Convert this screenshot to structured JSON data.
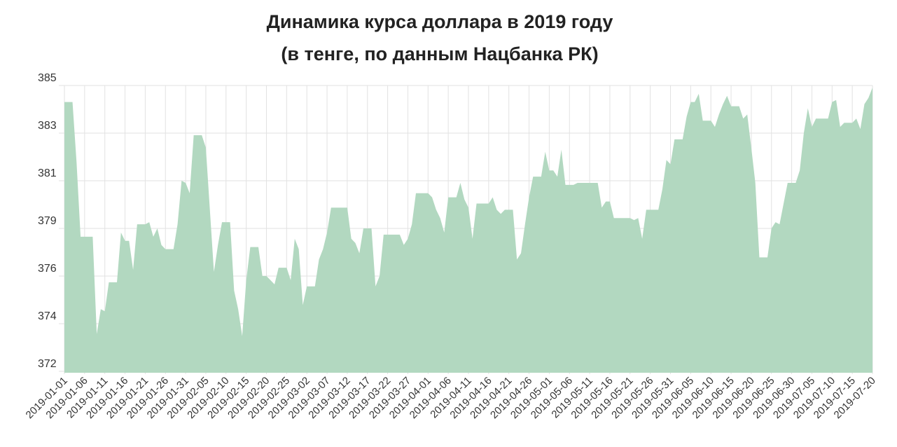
{
  "chart_data": {
    "type": "area",
    "title": "Динамика курса доллара в 2019 году",
    "subtitle": "(в тенге, по данным Нацбанка РК)",
    "color": "#b2d8c0",
    "grid": true,
    "ylim": [
      371.6,
      385.4
    ],
    "yticks": [
      {
        "value": 371.6,
        "label": "372"
      },
      {
        "value": 373.9,
        "label": "374"
      },
      {
        "value": 376.2,
        "label": "376"
      },
      {
        "value": 378.5,
        "label": "379"
      },
      {
        "value": 380.8,
        "label": "381"
      },
      {
        "value": 383.1,
        "label": "383"
      },
      {
        "value": 385.4,
        "label": "385"
      }
    ],
    "categories": [
      "2019-01-01",
      null,
      null,
      null,
      null,
      "2019-01-06",
      null,
      null,
      null,
      null,
      "2019-01-11",
      null,
      null,
      null,
      null,
      "2019-01-16",
      null,
      null,
      null,
      null,
      "2019-01-21",
      null,
      null,
      null,
      null,
      "2019-01-26",
      null,
      null,
      null,
      null,
      "2019-01-31",
      null,
      null,
      null,
      null,
      "2019-02-05",
      null,
      null,
      null,
      null,
      "2019-02-10",
      null,
      null,
      null,
      null,
      "2019-02-15",
      null,
      null,
      null,
      null,
      "2019-02-20",
      null,
      null,
      null,
      null,
      "2019-02-25",
      null,
      null,
      null,
      null,
      "2019-03-02",
      null,
      null,
      null,
      null,
      "2019-03-07",
      null,
      null,
      null,
      null,
      "2019-03-12",
      null,
      null,
      null,
      null,
      "2019-03-17",
      null,
      null,
      null,
      null,
      "2019-03-22",
      null,
      null,
      null,
      null,
      "2019-03-27",
      null,
      null,
      null,
      null,
      "2019-04-01",
      null,
      null,
      null,
      null,
      "2019-04-06",
      null,
      null,
      null,
      null,
      "2019-04-11",
      null,
      null,
      null,
      null,
      "2019-04-16",
      null,
      null,
      null,
      null,
      "2019-04-21",
      null,
      null,
      null,
      null,
      "2019-04-26",
      null,
      null,
      null,
      null,
      "2019-05-01",
      null,
      null,
      null,
      null,
      "2019-05-06",
      null,
      null,
      null,
      null,
      "2019-05-11",
      null,
      null,
      null,
      null,
      "2019-05-16",
      null,
      null,
      null,
      null,
      "2019-05-21",
      null,
      null,
      null,
      null,
      "2019-05-26",
      null,
      null,
      null,
      null,
      "2019-05-31",
      null,
      null,
      null,
      null,
      "2019-06-05",
      null,
      null,
      null,
      null,
      "2019-06-10",
      null,
      null,
      null,
      null,
      "2019-06-15",
      null,
      null,
      null,
      null,
      "2019-06-20",
      null,
      null,
      null,
      null,
      "2019-06-25",
      null,
      null,
      null,
      null,
      "2019-06-30",
      null,
      null,
      null,
      null,
      "2019-07-05",
      null,
      null,
      null,
      null,
      "2019-07-10",
      null,
      null,
      null,
      null,
      "2019-07-15",
      null,
      null,
      null,
      null,
      "2019-07-20"
    ],
    "values": [
      384.6,
      384.6,
      384.6,
      381.7,
      378.1,
      378.1,
      378.1,
      378.1,
      373.4,
      374.6,
      374.5,
      375.9,
      375.9,
      375.9,
      378.3,
      377.9,
      377.9,
      376.5,
      378.7,
      378.7,
      378.7,
      378.8,
      378.1,
      378.5,
      377.7,
      377.5,
      377.5,
      377.5,
      378.7,
      380.8,
      380.7,
      380.2,
      383.0,
      383.0,
      383.0,
      382.4,
      379.4,
      376.4,
      377.7,
      378.8,
      378.8,
      378.8,
      375.5,
      374.6,
      373.3,
      376.0,
      377.6,
      377.6,
      377.6,
      376.2,
      376.2,
      376.0,
      375.8,
      376.6,
      376.6,
      376.6,
      376.0,
      378.0,
      377.5,
      374.8,
      375.7,
      375.7,
      375.7,
      377.0,
      377.5,
      378.3,
      379.5,
      379.5,
      379.5,
      379.5,
      379.5,
      378.0,
      377.8,
      377.3,
      378.5,
      378.5,
      378.5,
      375.7,
      376.2,
      378.2,
      378.2,
      378.2,
      378.2,
      378.2,
      377.7,
      378.0,
      378.7,
      380.2,
      380.2,
      380.2,
      380.2,
      380.0,
      379.4,
      379.0,
      378.3,
      380.0,
      380.0,
      380.0,
      380.7,
      379.9,
      379.5,
      378.0,
      379.7,
      379.7,
      379.7,
      379.7,
      380.0,
      379.4,
      379.2,
      379.4,
      379.4,
      379.4,
      377.0,
      377.3,
      378.7,
      380.0,
      381.0,
      381.0,
      381.0,
      382.2,
      381.3,
      381.3,
      381.0,
      382.3,
      380.6,
      380.6,
      380.6,
      380.7,
      380.7,
      380.7,
      380.7,
      380.7,
      380.7,
      379.5,
      379.8,
      379.8,
      379.0,
      379.0,
      379.0,
      379.0,
      379.0,
      378.9,
      379.0,
      378.0,
      379.4,
      379.4,
      379.4,
      379.4,
      380.4,
      381.8,
      381.6,
      382.8,
      382.8,
      382.8,
      383.9,
      384.6,
      384.6,
      385.0,
      383.7,
      383.7,
      383.7,
      383.4,
      384.0,
      384.5,
      384.9,
      384.4,
      384.4,
      384.4,
      383.8,
      384.0,
      382.4,
      380.7,
      377.1,
      377.1,
      377.1,
      378.5,
      378.8,
      378.7,
      379.7,
      380.7,
      380.7,
      380.7,
      381.3,
      383.1,
      384.3,
      383.4,
      383.8,
      383.8,
      383.8,
      383.8,
      384.6,
      384.7,
      383.4,
      383.6,
      383.6,
      383.6,
      383.8,
      383.3,
      384.5,
      384.8,
      385.3
    ]
  }
}
